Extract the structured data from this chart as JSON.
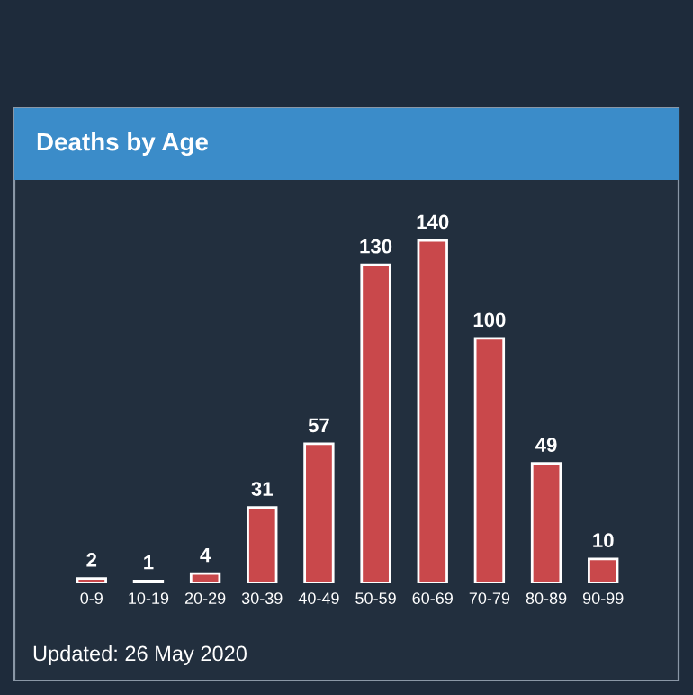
{
  "chart_data": {
    "type": "bar",
    "title": "Deaths by Age",
    "categories": [
      "0-9",
      "10-19",
      "20-29",
      "30-39",
      "40-49",
      "50-59",
      "60-69",
      "70-79",
      "80-89",
      "90-99"
    ],
    "values": [
      2,
      1,
      4,
      31,
      57,
      130,
      140,
      100,
      49,
      10
    ],
    "color": "#c9484b",
    "data_labels": true,
    "grid": false,
    "legend": false,
    "annotations": [
      "Updated: 26 May 2020"
    ]
  }
}
